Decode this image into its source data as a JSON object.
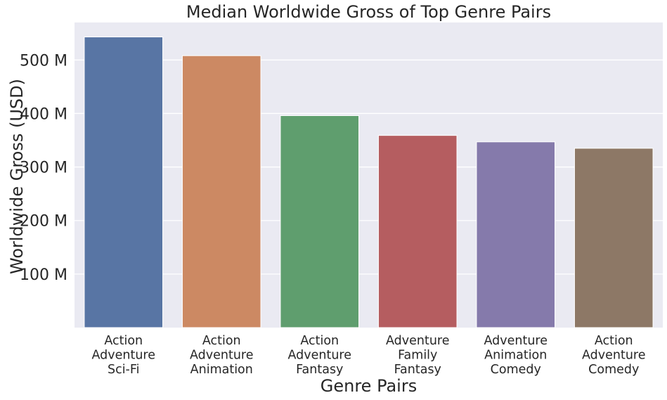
{
  "chart_data": {
    "type": "bar",
    "title": "Median Worldwide Gross of Top Genre Pairs",
    "xlabel": "Genre Pairs",
    "ylabel": "Worldwide Gross (USD)",
    "ylim": [
      0,
      570
    ],
    "yticks": [
      100,
      200,
      300,
      400,
      500
    ],
    "ytick_labels": [
      "100 M",
      "200 M",
      "300 M",
      "400 M",
      "500 M"
    ],
    "unit": "M",
    "grid": true,
    "categories": [
      [
        "Action",
        "Adventure",
        "Sci-Fi"
      ],
      [
        "Action",
        "Adventure",
        "Animation"
      ],
      [
        "Action",
        "Adventure",
        "Fantasy"
      ],
      [
        "Adventure",
        "Family",
        "Fantasy"
      ],
      [
        "Adventure",
        "Animation",
        "Comedy"
      ],
      [
        "Action",
        "Adventure",
        "Comedy"
      ]
    ],
    "values": [
      543,
      508,
      396,
      359,
      347,
      335
    ],
    "colors": [
      "#5875a4",
      "#cc8963",
      "#5f9e6e",
      "#b55d60",
      "#857aab",
      "#8d7866"
    ],
    "background": "#eaeaf2"
  }
}
